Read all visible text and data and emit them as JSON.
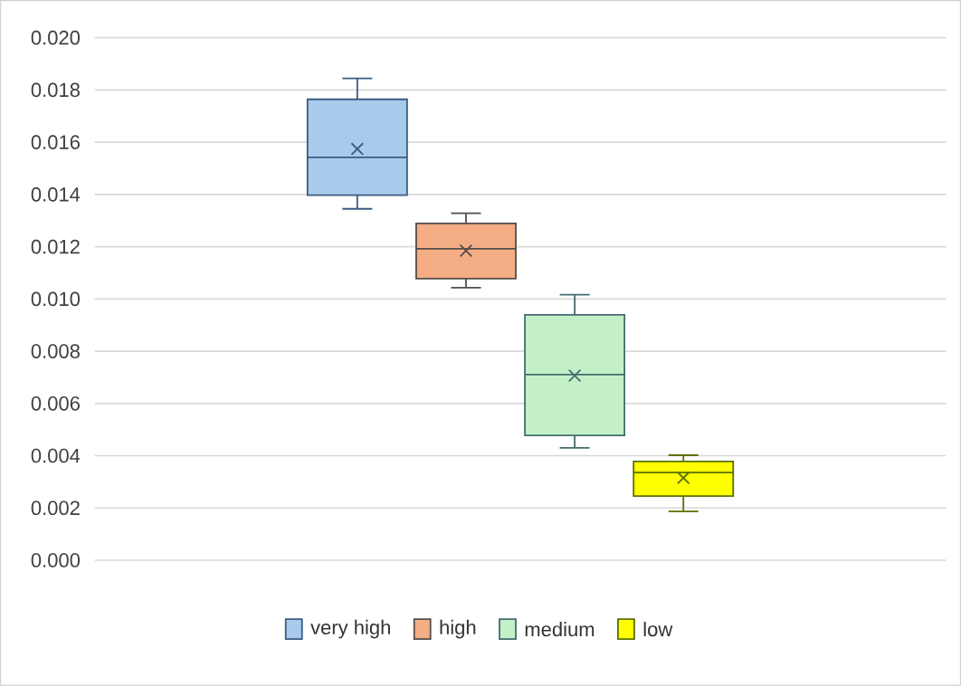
{
  "chart_data": {
    "type": "box",
    "categories": [
      null
    ],
    "ylim": [
      0,
      0.02
    ],
    "yticks": [
      {
        "value": 0,
        "label": "0.000"
      },
      {
        "value": 0.002,
        "label": "0.002"
      },
      {
        "value": 0.004,
        "label": "0.004"
      },
      {
        "value": 0.006,
        "label": "0.006"
      },
      {
        "value": 0.008,
        "label": "0.008"
      },
      {
        "value": 0.01,
        "label": "0.010"
      },
      {
        "value": 0.012,
        "label": "0.012"
      },
      {
        "value": 0.014,
        "label": "0.014"
      },
      {
        "value": 0.016,
        "label": "0.016"
      },
      {
        "value": 0.018,
        "label": "0.018"
      },
      {
        "value": 0.02,
        "label": "0.020"
      }
    ],
    "grid": "y",
    "legend": "bottom",
    "tick_labels": "y",
    "series": [
      {
        "name": "very high",
        "color": "#a9cbeb",
        "boxes": [
          {
            "low": 0.01345,
            "q1": 0.01397,
            "median": 0.01542,
            "q3": 0.01764,
            "high": 0.01844,
            "mean": 0.01574
          }
        ]
      },
      {
        "name": "high",
        "color": "#f4ad85",
        "boxes": [
          {
            "low": 0.01043,
            "q1": 0.01078,
            "median": 0.01192,
            "q3": 0.01289,
            "high": 0.01328,
            "mean": 0.01185
          }
        ]
      },
      {
        "name": "medium",
        "color": "#c4f0c8",
        "boxes": [
          {
            "low": 0.0043,
            "q1": 0.00478,
            "median": 0.00711,
            "q3": 0.00939,
            "high": 0.01016,
            "mean": 0.00707
          }
        ]
      },
      {
        "name": "low",
        "color": "#ffff00",
        "boxes": [
          {
            "low": 0.00187,
            "q1": 0.00246,
            "median": 0.00336,
            "q3": 0.00378,
            "high": 0.00402,
            "mean": 0.00315
          }
        ]
      }
    ]
  }
}
